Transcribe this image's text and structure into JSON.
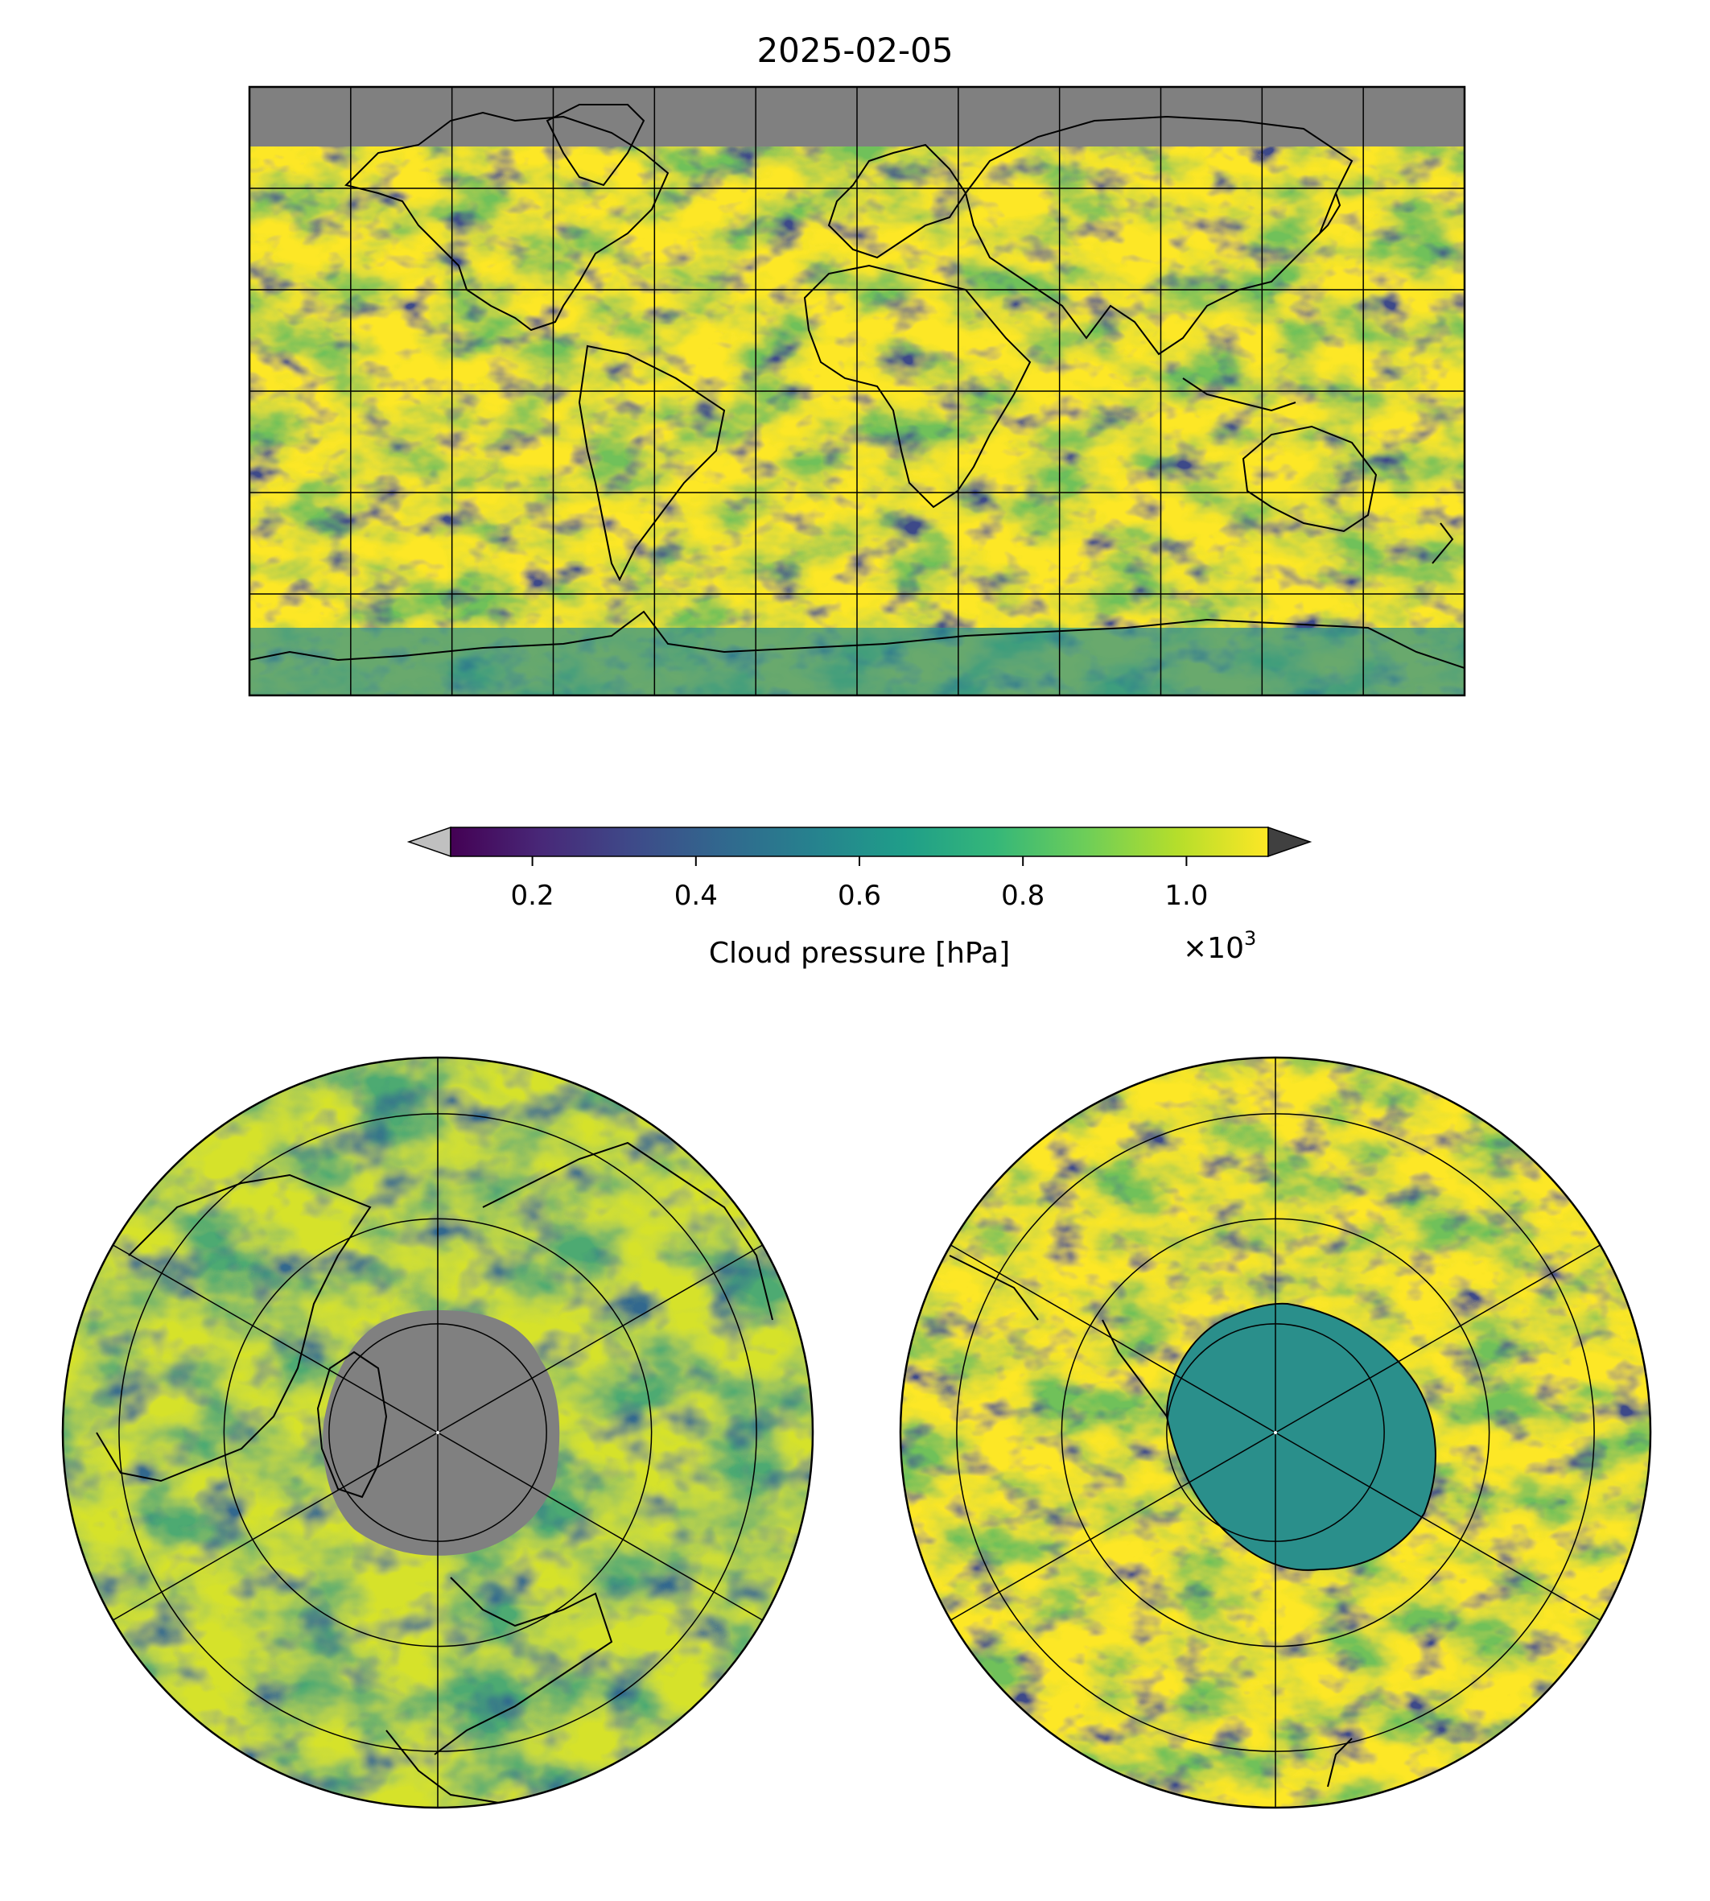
{
  "figure": {
    "title": "2025-02-05"
  },
  "colorbar": {
    "label": "Cloud pressure [hPa]",
    "multiplier_base": "×10",
    "multiplier_exp": "3",
    "ticks": [
      {
        "value": 0.2,
        "label": "0.2"
      },
      {
        "value": 0.4,
        "label": "0.4"
      },
      {
        "value": 0.6,
        "label": "0.6"
      },
      {
        "value": 0.8,
        "label": "0.8"
      },
      {
        "value": 1.0,
        "label": "1.0"
      }
    ],
    "range": [
      0.1,
      1.1
    ],
    "extend": "both",
    "under_color": "#c0c0c0",
    "over_color": "#404040",
    "colormap": "viridis",
    "colormap_stops": [
      "#440154",
      "#482878",
      "#3e4a89",
      "#31688e",
      "#26828e",
      "#1f9e89",
      "#35b779",
      "#6ece58",
      "#b5de2b",
      "#fde725"
    ]
  },
  "maps": [
    {
      "id": "global",
      "projection": "plate-carree",
      "missing_color": "#808080"
    },
    {
      "id": "north-polar",
      "projection": "north-polar-stereographic",
      "missing_color": "#808080"
    },
    {
      "id": "south-polar",
      "projection": "south-polar-stereographic"
    }
  ]
}
